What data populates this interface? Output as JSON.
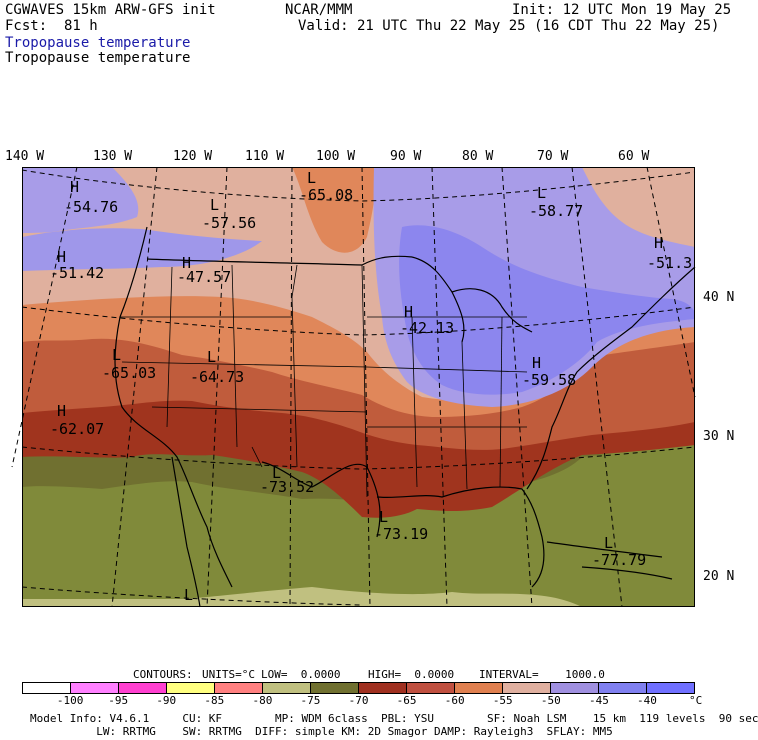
{
  "header": {
    "model": "CGWAVES 15km ARW-GFS init",
    "forecast_label": "Fcst:",
    "forecast_hours": "81 h",
    "org": "NCAR/MMM",
    "init": "Init: 12 UTC Mon 19 May 25",
    "valid": "Valid: 21 UTC Thu 22 May 25 (16 CDT Thu 22 May 25)",
    "field_title_1": "Tropopause temperature",
    "field_title_2": "Tropopause temperature"
  },
  "longitude_labels": [
    "140 W",
    "130 W",
    "120 W",
    "110 W",
    "100 W",
    "90 W",
    "80 W",
    "70 W",
    "60 W"
  ],
  "latitude_labels": [
    "40 N",
    "30 N",
    "20 N"
  ],
  "map_annotations": [
    {
      "kind": "H",
      "value": "-54.76"
    },
    {
      "kind": "L",
      "value": "-57.56"
    },
    {
      "kind": "L",
      "value": "-65.08"
    },
    {
      "kind": "L",
      "value": "-58.77"
    },
    {
      "kind": "H",
      "value": "-51.42"
    },
    {
      "kind": "H",
      "value": "-47.57"
    },
    {
      "kind": "H",
      "value": "-51.3"
    },
    {
      "kind": "H",
      "value": "-42.13"
    },
    {
      "kind": "L",
      "value": "-65.03"
    },
    {
      "kind": "L",
      "value": "-64.73"
    },
    {
      "kind": "H",
      "value": "-59.58"
    },
    {
      "kind": "H",
      "value": "-62.07"
    },
    {
      "kind": "L",
      "value": "-73.52"
    },
    {
      "kind": "L",
      "value": "-73.19"
    },
    {
      "kind": "L",
      "value": "-77.79"
    },
    {
      "kind": "L",
      "value": ""
    }
  ],
  "contours": {
    "label": "CONTOURS:",
    "units": "UNITS=°C",
    "low": "LOW=  0.0000",
    "high": "HIGH=  0.0000",
    "interval": "INTERVAL=    1000.0"
  },
  "colorbar": {
    "colors": [
      "#ffffff",
      "#ff80ff",
      "#ff40d0",
      "#ffff80",
      "#ff8080",
      "#c0c080",
      "#707030",
      "#a03020",
      "#c05040",
      "#e08050",
      "#e0b0a0",
      "#a090e0",
      "#8080f0",
      "#7070ff"
    ],
    "ticks": [
      "-100",
      "-95",
      "-90",
      "-85",
      "-80",
      "-75",
      "-70",
      "-65",
      "-60",
      "-55",
      "-50",
      "-45",
      "-40"
    ],
    "unit": "°C"
  },
  "field_colors": {
    "band_40_45": "#8c86ee",
    "band_45_50": "#9f97ea",
    "band_50_55": "#a89ce8",
    "band_55_60": "#e0b09e",
    "band_60_65": "#e0875a",
    "band_65_70": "#c05c3c",
    "band_70_75": "#a0341e",
    "band_75_80": "#707030",
    "band_80_85": "#808a3a",
    "band_85_90": "#c0c080"
  },
  "footer": {
    "line1": "Model Info: V4.6.1     CU: KF        MP: WDM 6class  PBL: YSU        SF: Noah LSM    15 km  119 levels  90 sec",
    "line2": "          LW: RRTMG    SW: RRTMG  DIFF: simple KM: 2D Smagor DAMP: Rayleigh3  SFLAY: MM5"
  }
}
